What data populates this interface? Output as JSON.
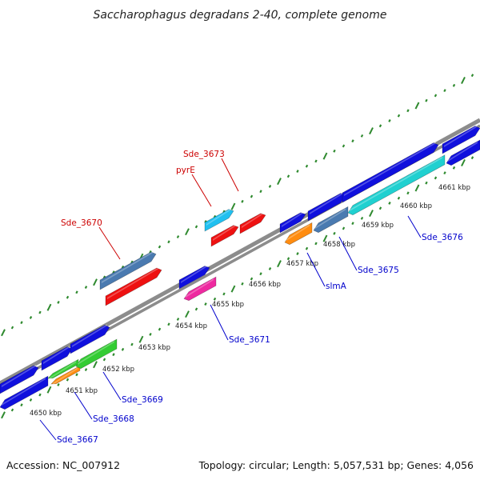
{
  "title": "Saccharophagus degradans 2-40, complete genome",
  "footer": {
    "accession": "Accession: NC_007912",
    "summary": "Topology: circular; Length: 5,057,531 bp; Genes: 4,056"
  },
  "colors": {
    "backbone": "#8c8c8c",
    "tick": "#2f8a2f",
    "forward_label": "#cc0000",
    "reverse_label": "#0000cc",
    "blue": "#1010dd",
    "red": "#ee1111",
    "steelblue": "#4a7ab0",
    "cyan": "#20d0d0",
    "green": "#33cc33",
    "orange": "#ff8c10",
    "magenta": "#ee2aa0",
    "skyblue": "#20c0f0"
  },
  "kbp_labels": [
    "4650 kbp",
    "4651 kbp",
    "4652 kbp",
    "4653 kbp",
    "4654 kbp",
    "4655 kbp",
    "4656 kbp",
    "4657 kbp",
    "4658 kbp",
    "4659 kbp",
    "4660 kbp",
    "4661 kbp"
  ],
  "genes": [
    {
      "label": "Sde_3673",
      "strand": "forward"
    },
    {
      "label": "pyrE",
      "strand": "forward"
    },
    {
      "label": "Sde_3670",
      "strand": "forward"
    },
    {
      "label": "Sde_3676",
      "strand": "reverse"
    },
    {
      "label": "Sde_3675",
      "strand": "reverse"
    },
    {
      "label": "slmA",
      "strand": "reverse"
    },
    {
      "label": "Sde_3671",
      "strand": "reverse"
    },
    {
      "label": "Sde_3669",
      "strand": "reverse"
    },
    {
      "label": "Sde_3668",
      "strand": "reverse"
    },
    {
      "label": "Sde_3667",
      "strand": "reverse"
    }
  ]
}
